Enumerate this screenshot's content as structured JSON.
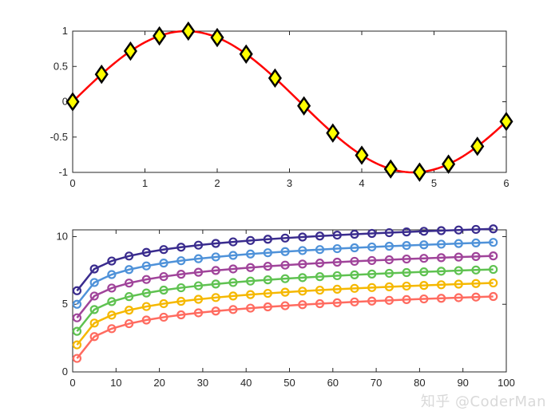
{
  "watermark": "知乎 @CoderMan",
  "chart_data": [
    {
      "type": "line",
      "title": "",
      "xlabel": "",
      "ylabel": "",
      "xlim": [
        0,
        6
      ],
      "ylim": [
        -1,
        1
      ],
      "x_ticks": [
        "0",
        "1",
        "2",
        "3",
        "4",
        "5",
        "6"
      ],
      "y_ticks": [
        "-1",
        "-0.5",
        "0",
        "0.5",
        "1"
      ],
      "grid": false,
      "series": [
        {
          "function": "sin(x)",
          "line_color": "#ff0000",
          "marker": "diamond",
          "marker_face_color": "#ffff00",
          "marker_edge_color": "#000000",
          "x": [
            0,
            0.4,
            0.8,
            1.2,
            1.6,
            2.0,
            2.4,
            2.8,
            3.2,
            3.6,
            4.0,
            4.4,
            4.8,
            5.2,
            5.6,
            6.0
          ],
          "y": [
            0,
            0.389,
            0.717,
            0.932,
            1.0,
            0.909,
            0.675,
            0.335,
            -0.058,
            -0.443,
            -0.757,
            -0.952,
            -0.996,
            -0.883,
            -0.631,
            -0.279
          ]
        }
      ]
    },
    {
      "type": "line",
      "title": "",
      "xlabel": "",
      "ylabel": "",
      "xlim": [
        0,
        100
      ],
      "ylim": [
        0,
        10.5
      ],
      "x_ticks": [
        "0",
        "10",
        "20",
        "30",
        "40",
        "50",
        "60",
        "70",
        "80",
        "90",
        "100"
      ],
      "y_ticks": [
        "0",
        "5",
        "10"
      ],
      "grid": false,
      "marker": "circle-open",
      "x": [
        1,
        5,
        9,
        13,
        17,
        21,
        25,
        29,
        33,
        37,
        41,
        45,
        49,
        53,
        57,
        61,
        65,
        69,
        73,
        77,
        81,
        85,
        89,
        93,
        97
      ],
      "series": [
        {
          "color": "#ff6b60",
          "offset": 1,
          "y": [
            1.0,
            2.609,
            3.197,
            3.565,
            3.833,
            4.045,
            4.219,
            4.367,
            4.497,
            4.611,
            4.714,
            4.807,
            4.892,
            4.97,
            5.043,
            5.111,
            5.174,
            5.234,
            5.29,
            5.344,
            5.394,
            5.442,
            5.488,
            5.532,
            5.575
          ]
        },
        {
          "color": "#f5b800",
          "offset": 2,
          "y": [
            2.0,
            3.609,
            4.197,
            4.565,
            4.833,
            5.045,
            5.219,
            5.367,
            5.497,
            5.611,
            5.714,
            5.807,
            5.892,
            5.97,
            6.043,
            6.111,
            6.174,
            6.234,
            6.29,
            6.344,
            6.394,
            6.442,
            6.488,
            6.532,
            6.575
          ]
        },
        {
          "color": "#5fc251",
          "offset": 3,
          "y": [
            3.0,
            4.609,
            5.197,
            5.565,
            5.833,
            6.045,
            6.219,
            6.367,
            6.497,
            6.611,
            6.714,
            6.807,
            6.892,
            6.97,
            7.043,
            7.111,
            7.174,
            7.234,
            7.29,
            7.344,
            7.394,
            7.442,
            7.488,
            7.532,
            7.575
          ]
        },
        {
          "color": "#a0449a",
          "offset": 4,
          "y": [
            4.0,
            5.609,
            6.197,
            6.565,
            6.833,
            7.045,
            7.219,
            7.367,
            7.497,
            7.611,
            7.714,
            7.807,
            7.892,
            7.97,
            8.043,
            8.111,
            8.174,
            8.234,
            8.29,
            8.344,
            8.394,
            8.442,
            8.488,
            8.532,
            8.575
          ]
        },
        {
          "color": "#4f92d9",
          "offset": 5,
          "y": [
            5.0,
            6.609,
            7.197,
            7.565,
            7.833,
            8.045,
            8.219,
            8.367,
            8.497,
            8.611,
            8.714,
            8.807,
            8.892,
            8.97,
            9.043,
            9.111,
            9.174,
            9.234,
            9.29,
            9.344,
            9.394,
            9.442,
            9.488,
            9.532,
            9.575
          ]
        },
        {
          "color": "#3a2c8e",
          "offset": 6,
          "y": [
            6.0,
            7.609,
            8.197,
            8.565,
            8.833,
            9.045,
            9.219,
            9.367,
            9.497,
            9.611,
            9.714,
            9.807,
            9.892,
            9.97,
            10.043,
            10.111,
            10.174,
            10.234,
            10.29,
            10.344,
            10.394,
            10.442,
            10.488,
            10.532,
            10.575
          ]
        }
      ]
    }
  ]
}
